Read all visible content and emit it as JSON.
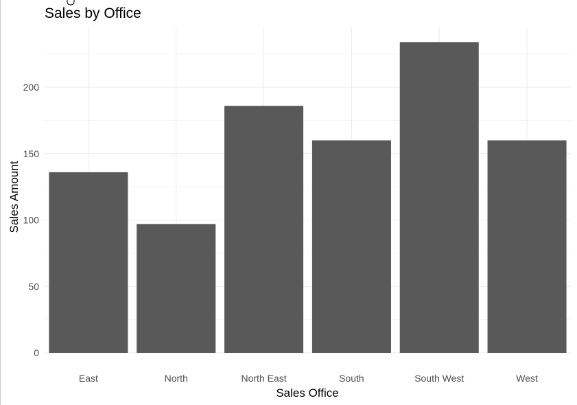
{
  "colors": {
    "bar": "#595959",
    "background": "#ffffff"
  },
  "chart_data": {
    "type": "bar",
    "title": "Sales by Office",
    "xlabel": "Sales Office",
    "ylabel": "Sales Amount",
    "categories": [
      "East",
      "North",
      "North East",
      "South",
      "South West",
      "West"
    ],
    "values": [
      136,
      97,
      186,
      160,
      234,
      160
    ],
    "ylim": [
      0,
      234
    ],
    "yticks": [
      0,
      50,
      100,
      150,
      200
    ],
    "grid": true,
    "legend": "none"
  }
}
